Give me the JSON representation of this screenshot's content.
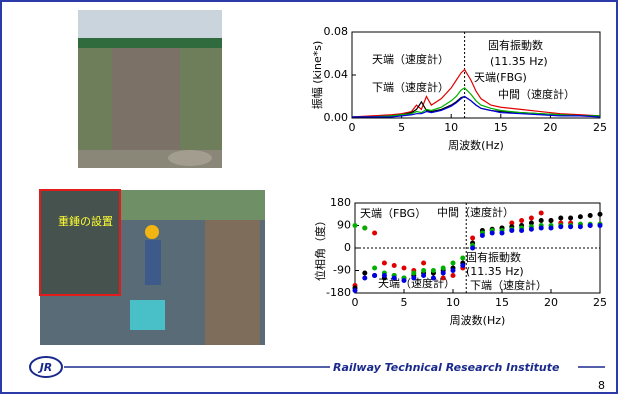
{
  "slide": {
    "photo_label": "重錘の設置",
    "logo": "JR",
    "footer": "Railway Technical Research Institute",
    "page": "8"
  },
  "chart_data": [
    {
      "type": "line",
      "xlabel": "周波数(Hz)",
      "ylabel": "振幅 (kine*s)",
      "xlim": [
        0,
        25
      ],
      "xticks": [
        0,
        5,
        10,
        15,
        20,
        25
      ],
      "ylim": [
        0,
        0.08
      ],
      "yticks": [
        {
          "value": 0,
          "label": "0.00"
        },
        {
          "value": 0.04,
          "label": "0.04"
        },
        {
          "value": 0.08,
          "label": "0.08"
        }
      ],
      "vline": 11.35,
      "vline_title": "固有振動数",
      "vline_label": "(11.35 Hz)",
      "x": [
        0,
        2,
        4,
        5,
        6,
        6.5,
        7,
        7.5,
        8,
        9,
        10,
        10.5,
        11,
        11.35,
        12,
        12.5,
        13,
        14,
        15,
        17,
        19,
        21,
        23,
        25
      ],
      "series": [
        {
          "name": "天端（速度計）",
          "color": "#e00000",
          "values": [
            0.001,
            0.002,
            0.003,
            0.004,
            0.006,
            0.012,
            0.008,
            0.02,
            0.012,
            0.018,
            0.028,
            0.035,
            0.042,
            0.045,
            0.035,
            0.025,
            0.018,
            0.012,
            0.01,
            0.008,
            0.006,
            0.004,
            0.003,
            0.002
          ]
        },
        {
          "name": "下端（速度計）",
          "color": "#000000",
          "values": [
            0.001,
            0.001,
            0.002,
            0.003,
            0.005,
            0.008,
            0.015,
            0.007,
            0.006,
            0.008,
            0.012,
            0.015,
            0.019,
            0.02,
            0.016,
            0.012,
            0.009,
            0.007,
            0.006,
            0.005,
            0.004,
            0.003,
            0.002,
            0.002
          ]
        },
        {
          "name": "天端(FBG)",
          "color": "#00b000",
          "values": [
            0.001,
            0.001,
            0.002,
            0.003,
            0.004,
            0.006,
            0.005,
            0.008,
            0.007,
            0.01,
            0.016,
            0.02,
            0.026,
            0.028,
            0.022,
            0.016,
            0.012,
            0.009,
            0.007,
            0.005,
            0.004,
            0.003,
            0.002,
            0.002
          ]
        },
        {
          "name": "中間（速度計）",
          "color": "#0000e0",
          "values": [
            0.001,
            0.001,
            0.001,
            0.002,
            0.003,
            0.004,
            0.004,
            0.006,
            0.005,
            0.007,
            0.011,
            0.014,
            0.018,
            0.02,
            0.016,
            0.012,
            0.009,
            0.007,
            0.005,
            0.004,
            0.003,
            0.002,
            0.002,
            0.001
          ]
        }
      ]
    },
    {
      "type": "scatter",
      "xlabel": "周波数(Hz)",
      "ylabel": "位相角（度）",
      "xlim": [
        0,
        25
      ],
      "xticks": [
        0,
        5,
        10,
        15,
        20,
        25
      ],
      "ylim": [
        -180,
        180
      ],
      "yticks": [
        -180,
        -90,
        0,
        90,
        180
      ],
      "vline": 11.35,
      "vline_title": "固有振動数",
      "vline_label": "(11.35 Hz)",
      "x": [
        0,
        1,
        2,
        3,
        4,
        5,
        6,
        7,
        8,
        9,
        10,
        11,
        12,
        13,
        14,
        15,
        16,
        17,
        18,
        19,
        20,
        21,
        22,
        23,
        24,
        25
      ],
      "series": [
        {
          "name": "天端（速度計）",
          "color": "#e00000",
          "values": [
            -150,
            80,
            60,
            -60,
            -70,
            -80,
            -90,
            -60,
            -100,
            -120,
            -110,
            -80,
            40,
            60,
            70,
            80,
            100,
            110,
            120,
            140,
            110,
            100,
            100,
            95,
            90,
            95
          ]
        },
        {
          "name": "下端（速度計）",
          "color": "#000000",
          "values": [
            -160,
            -100,
            -110,
            -120,
            -110,
            -120,
            -110,
            -100,
            -100,
            -90,
            -80,
            -60,
            20,
            70,
            75,
            80,
            85,
            90,
            100,
            110,
            110,
            120,
            120,
            125,
            130,
            135
          ]
        },
        {
          "name": "天端（FBG）",
          "color": "#00b000",
          "values": [
            90,
            80,
            -80,
            -100,
            -110,
            -120,
            -100,
            -90,
            -90,
            -80,
            -60,
            -40,
            10,
            60,
            70,
            70,
            75,
            80,
            85,
            90,
            90,
            90,
            90,
            95,
            95,
            95
          ]
        },
        {
          "name": "中間（速度計）",
          "color": "#0000e0",
          "values": [
            -170,
            -120,
            -110,
            -110,
            -120,
            -130,
            -120,
            -110,
            -120,
            -100,
            -90,
            -70,
            0,
            50,
            60,
            60,
            70,
            70,
            75,
            80,
            80,
            85,
            85,
            85,
            90,
            90
          ]
        }
      ]
    }
  ]
}
